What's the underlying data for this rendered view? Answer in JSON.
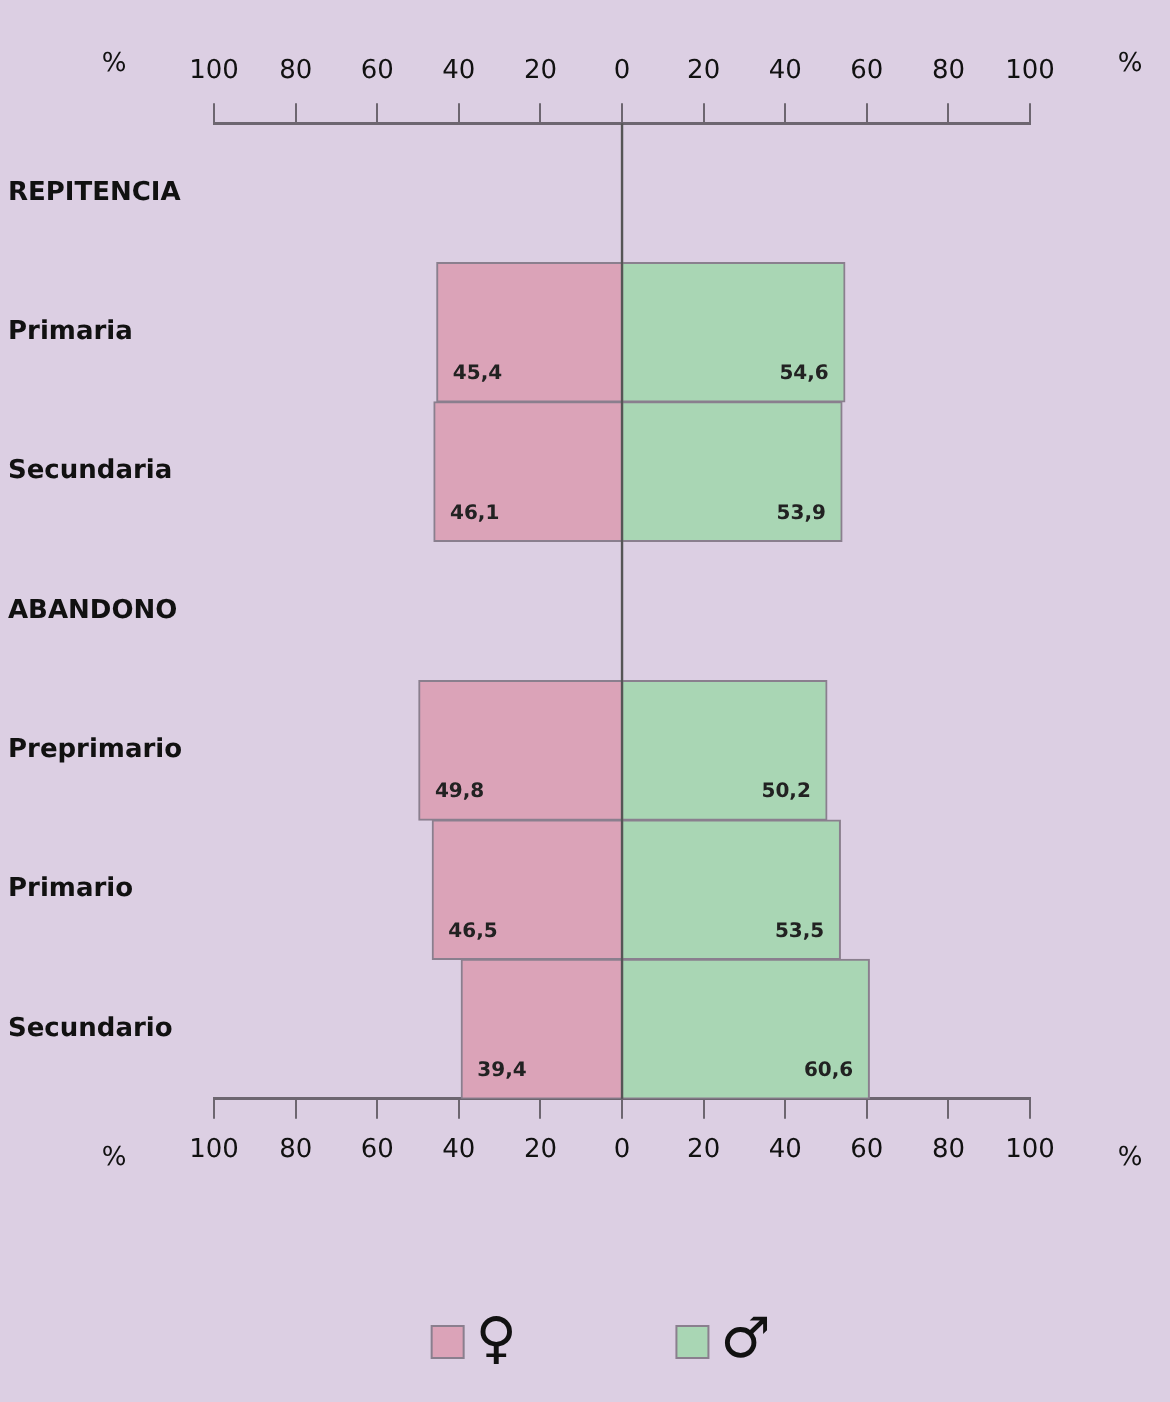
{
  "chart_data": {
    "type": "bar",
    "orientation": "horizontal",
    "categories": [
      "REPITENCIA",
      "Primaria",
      "Secundaria",
      "ABANDONO",
      "Preprimario",
      "Primario",
      "Secundario"
    ],
    "series": [
      {
        "name": "♀",
        "color": "#dba3b8",
        "values": [
          null,
          45.4,
          46.1,
          null,
          49.8,
          46.5,
          39.4
        ],
        "base": [
          null,
          -45.4,
          -46.1,
          null,
          -49.8,
          -46.5,
          -39.4
        ],
        "value_labels": [
          null,
          "45,4",
          "46,1",
          null,
          "49,8",
          "46,5",
          "39,4"
        ]
      },
      {
        "name": "♂",
        "color": "#a9d6b4",
        "values": [
          null,
          54.6,
          53.9,
          null,
          50.2,
          53.5,
          60.6
        ],
        "value_labels": [
          null,
          "54,6",
          "53,9",
          null,
          "50,2",
          "53,5",
          "60,6"
        ]
      }
    ],
    "xlabel": "%",
    "x2label": "%",
    "xlim": [
      -100,
      100
    ],
    "xticks": [
      {
        "value": -100,
        "label": "100"
      },
      {
        "value": -80,
        "label": "80"
      },
      {
        "value": -60,
        "label": "60"
      },
      {
        "value": -40,
        "label": "40"
      },
      {
        "value": -20,
        "label": "20"
      },
      0,
      20,
      40,
      60,
      80,
      100
    ],
    "x2lim": [
      -100,
      100
    ],
    "x2ticks": [
      {
        "value": -100,
        "label": "100"
      },
      {
        "value": -80,
        "label": "80"
      },
      {
        "value": -60,
        "label": "60"
      },
      {
        "value": -40,
        "label": "40"
      },
      {
        "value": -20,
        "label": "20"
      },
      0,
      20,
      40,
      60,
      80,
      100
    ],
    "ref_lines": [
      {
        "axis": "x",
        "value": 0,
        "color": "#555555"
      }
    ],
    "legend": "bottom",
    "grid": false
  }
}
